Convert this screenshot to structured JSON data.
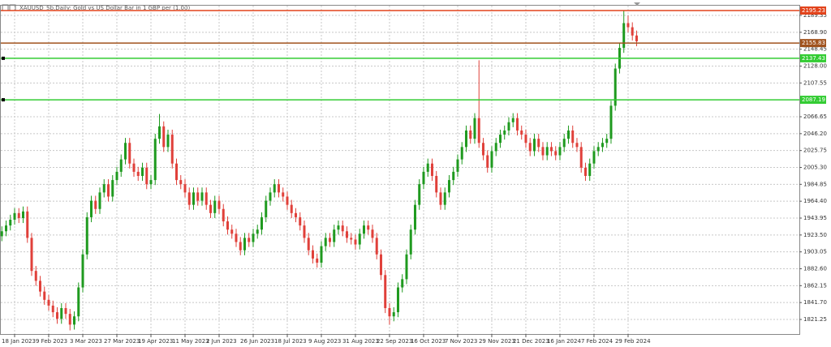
{
  "chart_data": {
    "type": "candlestick",
    "title": "XAUUSD_Sb,Daily:  Gold vs US Dollar Bar in 1 GBP per (1.00)",
    "up_color": "#1f9a1f",
    "down_color": "#e0403a",
    "grid": true,
    "xlim": [
      -0.43,
      187.2
    ],
    "ylim": [
      1803.6,
      2202.1
    ],
    "xticks": [
      {
        "value": 3,
        "label": "18 Jan 2023"
      },
      {
        "value": 11,
        "label": "9 Feb 2023"
      },
      {
        "value": 19,
        "label": "3 Mar 2023"
      },
      {
        "value": 27,
        "label": "27 Mar 2023"
      },
      {
        "value": 35,
        "label": "19 Apr 2023"
      },
      {
        "value": 43,
        "label": "11 May 2023"
      },
      {
        "value": 51,
        "label": "2 Jun 2023"
      },
      {
        "value": 59,
        "label": "26 Jun 2023"
      },
      {
        "value": 67,
        "label": "18 Jul 2023"
      },
      {
        "value": 75,
        "label": "9 Aug 2023"
      },
      {
        "value": 83,
        "label": "31 Aug 2023"
      },
      {
        "value": 91,
        "label": "22 Sep 2023"
      },
      {
        "value": 99,
        "label": "16 Oct 2023"
      },
      {
        "value": 107,
        "label": "7 Nov 2023"
      },
      {
        "value": 115,
        "label": "29 Nov 2023"
      },
      {
        "value": 123,
        "label": "21 Dec 2023"
      },
      {
        "value": 131,
        "label": "16 Jan 2024"
      },
      {
        "value": 139,
        "label": "7 Feb 2024"
      },
      {
        "value": 147,
        "label": "29 Feb 2024"
      }
    ],
    "yticks": [
      2189.35,
      {
        "value": 2168.9,
        "label": "2168.90"
      },
      2148.45,
      {
        "value": 2128,
        "label": "2128.00"
      },
      2107.55,
      2066.65,
      {
        "value": 2046.2,
        "label": "2046.20"
      },
      2025.75,
      {
        "value": 2005.3,
        "label": "2005.30"
      },
      1984.85,
      {
        "value": 1964.4,
        "label": "1964.40"
      },
      1943.95,
      {
        "value": 1923.5,
        "label": "1923.50"
      },
      1903.05,
      {
        "value": 1882.6,
        "label": "1882.60"
      },
      1862.15,
      {
        "value": 1841.7,
        "label": "1841.70"
      },
      1821.25
    ],
    "levels": [
      {
        "value": 2195.23,
        "color": "#e2431b"
      },
      {
        "value": 2155.83,
        "color": "#a0521d"
      },
      {
        "value": 2137.43,
        "color": "#33cc33"
      },
      {
        "value": 2087.19,
        "color": "#33cc33"
      }
    ],
    "open": [
      1922,
      1928,
      1935,
      1942,
      1950,
      1944,
      1952,
      1920,
      1880,
      1868,
      1855,
      1845,
      1838,
      1830,
      1822,
      1835,
      1828,
      1815,
      1825,
      1860,
      1900,
      1945,
      1965,
      1955,
      1975,
      1985,
      1970,
      1990,
      2000,
      2015,
      2035,
      2010,
      2000,
      1995,
      2005,
      1985,
      1990,
      2040,
      2055,
      2030,
      2045,
      2010,
      1990,
      1985,
      1975,
      1960,
      1975,
      1965,
      1975,
      1960,
      1950,
      1965,
      1955,
      1940,
      1930,
      1925,
      1915,
      1905,
      1920,
      1915,
      1925,
      1930,
      1945,
      1965,
      1975,
      1985,
      1975,
      1970,
      1960,
      1950,
      1945,
      1935,
      1920,
      1905,
      1895,
      1890,
      1910,
      1920,
      1915,
      1930,
      1935,
      1928,
      1920,
      1918,
      1912,
      1925,
      1935,
      1930,
      1920,
      1900,
      1875,
      1835,
      1825,
      1830,
      1860,
      1870,
      1900,
      1930,
      1960,
      1985,
      2000,
      2010,
      1995,
      1975,
      1960,
      1975,
      1990,
      2000,
      2015,
      2030,
      2050,
      2040,
      2065,
      2035,
      2020,
      2005,
      2025,
      2035,
      2045,
      2050,
      2060,
      2065,
      2050,
      2045,
      2035,
      2025,
      2040,
      2030,
      2020,
      2030,
      2025,
      2020,
      2030,
      2040,
      2050,
      2035,
      2030,
      2005,
      1995,
      2010,
      2025,
      2030,
      2035,
      2040,
      2080,
      2125,
      2150,
      2180,
      2175,
      2165
    ],
    "high": [
      1934,
      1941,
      1948,
      1956,
      1956,
      1958,
      1958,
      1926,
      1886,
      1874,
      1861,
      1851,
      1844,
      1836,
      1841,
      1841,
      1834,
      1831,
      1866,
      1906,
      1951,
      1971,
      1971,
      1981,
      1991,
      1991,
      1996,
      2006,
      2021,
      2041,
      2041,
      2016,
      2006,
      2011,
      2011,
      1996,
      2046,
      2070,
      2061,
      2051,
      2051,
      2016,
      1996,
      1991,
      1981,
      1981,
      1981,
      1981,
      1981,
      1966,
      1971,
      1971,
      1961,
      1946,
      1936,
      1931,
      1921,
      1926,
      1926,
      1931,
      1936,
      1951,
      1971,
      1981,
      1991,
      1991,
      1981,
      1976,
      1966,
      1956,
      1951,
      1941,
      1926,
      1911,
      1901,
      1916,
      1926,
      1926,
      1936,
      1941,
      1941,
      1934,
      1926,
      1924,
      1931,
      1941,
      1941,
      1936,
      1926,
      1906,
      1881,
      1841,
      1836,
      1866,
      1876,
      1906,
      1936,
      1966,
      1991,
      2006,
      2016,
      2016,
      2001,
      1981,
      1981,
      1996,
      2006,
      2021,
      2036,
      2056,
      2056,
      2071,
      2135,
      2041,
      2026,
      2031,
      2041,
      2051,
      2056,
      2066,
      2071,
      2071,
      2056,
      2051,
      2041,
      2046,
      2046,
      2036,
      2036,
      2036,
      2031,
      2036,
      2046,
      2056,
      2056,
      2041,
      2036,
      2011,
      2016,
      2031,
      2036,
      2041,
      2046,
      2086,
      2131,
      2156,
      2195,
      2189,
      2181,
      2171
    ],
    "low": [
      1916,
      1922,
      1929,
      1936,
      1938,
      1938,
      1914,
      1874,
      1862,
      1849,
      1839,
      1832,
      1824,
      1816,
      1816,
      1822,
      1808,
      1809,
      1819,
      1854,
      1894,
      1939,
      1949,
      1949,
      1969,
      1964,
      1964,
      1984,
      1994,
      2009,
      2004,
      1994,
      1989,
      1989,
      1979,
      1979,
      1984,
      2034,
      2024,
      2024,
      2004,
      1984,
      1979,
      1969,
      1954,
      1954,
      1959,
      1959,
      1954,
      1944,
      1944,
      1949,
      1934,
      1924,
      1919,
      1909,
      1899,
      1899,
      1909,
      1909,
      1919,
      1924,
      1939,
      1959,
      1969,
      1969,
      1964,
      1954,
      1944,
      1939,
      1929,
      1914,
      1899,
      1889,
      1884,
      1884,
      1904,
      1909,
      1909,
      1924,
      1922,
      1914,
      1912,
      1906,
      1906,
      1919,
      1924,
      1914,
      1894,
      1869,
      1829,
      1815,
      1819,
      1824,
      1854,
      1864,
      1894,
      1924,
      1954,
      1979,
      1994,
      1989,
      1969,
      1954,
      1954,
      1969,
      1984,
      1994,
      2009,
      2024,
      2034,
      2034,
      2029,
      2014,
      1999,
      1999,
      2019,
      2029,
      2039,
      2044,
      2054,
      2044,
      2039,
      2029,
      2019,
      2019,
      2024,
      2014,
      2014,
      2019,
      2014,
      2014,
      2024,
      2034,
      2029,
      2024,
      1999,
      1989,
      1989,
      2004,
      2019,
      2024,
      2029,
      2034,
      2074,
      2119,
      2144,
      2169,
      2159,
      2152
    ],
    "close": [
      1928,
      1935,
      1942,
      1950,
      1944,
      1952,
      1920,
      1880,
      1868,
      1855,
      1845,
      1838,
      1830,
      1822,
      1835,
      1828,
      1815,
      1825,
      1860,
      1900,
      1945,
      1965,
      1955,
      1975,
      1985,
      1970,
      1990,
      2000,
      2015,
      2035,
      2010,
      2000,
      1995,
      2005,
      1985,
      1990,
      2040,
      2055,
      2030,
      2045,
      2010,
      1990,
      1985,
      1975,
      1960,
      1975,
      1965,
      1975,
      1960,
      1950,
      1965,
      1955,
      1940,
      1930,
      1925,
      1915,
      1905,
      1920,
      1915,
      1925,
      1930,
      1945,
      1965,
      1975,
      1985,
      1975,
      1970,
      1960,
      1950,
      1945,
      1935,
      1920,
      1905,
      1895,
      1890,
      1910,
      1920,
      1915,
      1930,
      1935,
      1928,
      1920,
      1918,
      1912,
      1925,
      1935,
      1930,
      1920,
      1900,
      1875,
      1835,
      1825,
      1830,
      1860,
      1870,
      1900,
      1930,
      1960,
      1985,
      2000,
      2010,
      1995,
      1975,
      1960,
      1975,
      1990,
      2000,
      2015,
      2030,
      2050,
      2040,
      2065,
      2035,
      2020,
      2005,
      2025,
      2035,
      2045,
      2050,
      2060,
      2065,
      2050,
      2045,
      2035,
      2025,
      2040,
      2030,
      2020,
      2030,
      2025,
      2020,
      2030,
      2040,
      2050,
      2035,
      2030,
      2005,
      1995,
      2010,
      2025,
      2030,
      2035,
      2040,
      2080,
      2125,
      2150,
      2180,
      2175,
      2165,
      2158
    ]
  }
}
